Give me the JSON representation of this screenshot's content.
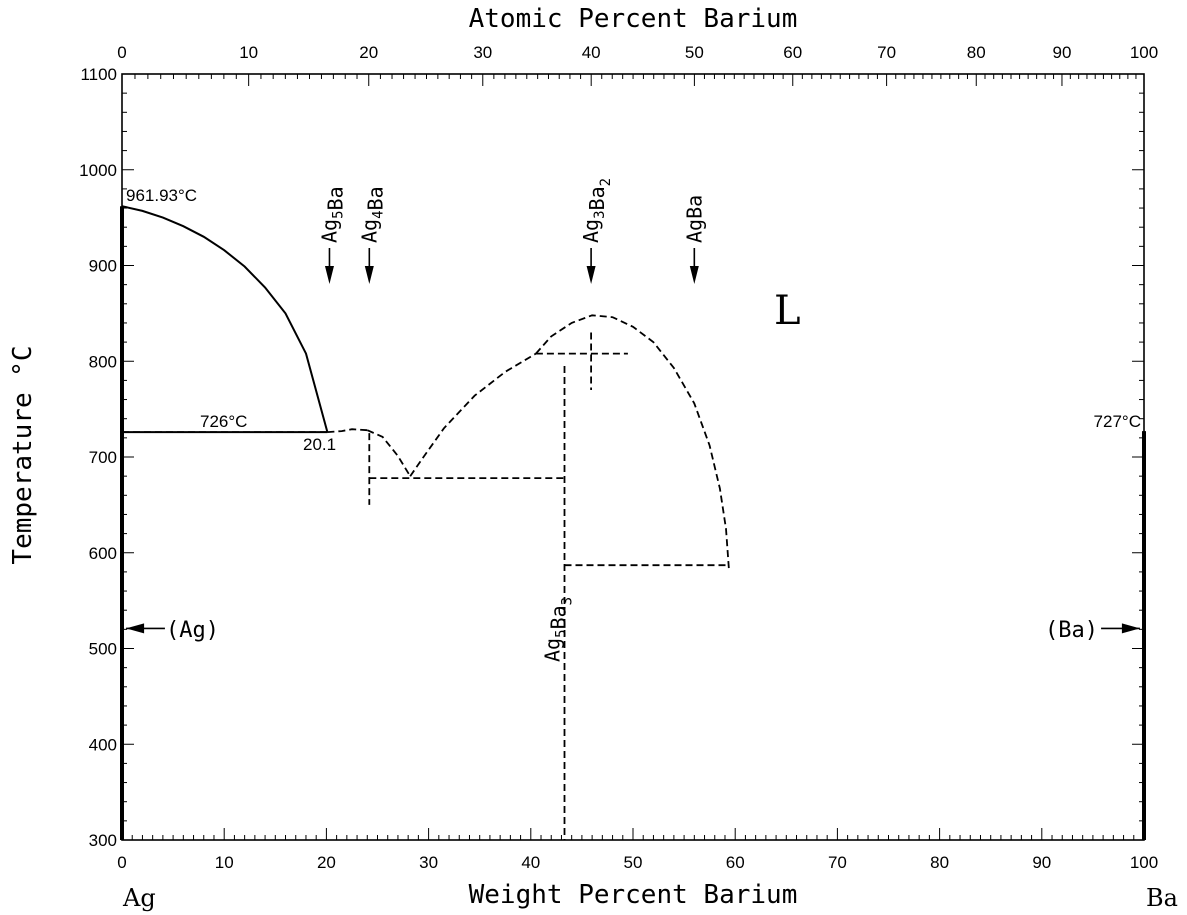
{
  "chart_data": {
    "type": "phase-diagram",
    "title": "",
    "x_bottom_label": "Weight Percent Barium",
    "x_top_label": "Atomic Percent Barium",
    "ylabel": "Temperature °C",
    "xlim": [
      0,
      100
    ],
    "ylim": [
      300,
      1100
    ],
    "bottom_ticks": [
      0,
      10,
      20,
      30,
      40,
      50,
      60,
      70,
      80,
      90,
      100
    ],
    "top_ticks": [
      0,
      10,
      20,
      30,
      40,
      50,
      60,
      70,
      80,
      90,
      100
    ],
    "y_ticks": [
      300,
      400,
      500,
      600,
      700,
      800,
      900,
      1000,
      1100
    ],
    "grid": false,
    "left_element": "Ag",
    "right_element": "Ba",
    "region_label": "L",
    "phase_labels": {
      "ag_solid": "(Ag)",
      "ba_solid": "(Ba)"
    },
    "annotations": {
      "ag_melting": "961.93°C",
      "eutectic_temp": "726°C",
      "eutectic_comp": "20.1",
      "ba_transition": "727°C"
    },
    "compounds": [
      {
        "base": "Ag",
        "sub1": "5",
        "mid": "Ba",
        "sub2": "",
        "wt_pct": 20.3
      },
      {
        "base": "Ag",
        "sub1": "4",
        "mid": "Ba",
        "sub2": "",
        "wt_pct": 24.2
      },
      {
        "base": "Ag",
        "sub1": "3",
        "mid": "Ba",
        "sub2": "2",
        "wt_pct": 45.9
      },
      {
        "base": "Ag",
        "sub1": "",
        "mid": "Ba",
        "sub2": "",
        "wt_pct": 56.0
      }
    ],
    "vertical_compound": {
      "base": "Ag",
      "sub1": "5",
      "mid": "Ba",
      "sub2": "3",
      "wt_pct": 43.3
    },
    "lines": [
      {
        "name": "liquidus-ag",
        "style": "solid",
        "points": [
          [
            0,
            961.93
          ],
          [
            2,
            957
          ],
          [
            4,
            950
          ],
          [
            6,
            941
          ],
          [
            8,
            930
          ],
          [
            10,
            916
          ],
          [
            12,
            899
          ],
          [
            14,
            877
          ],
          [
            16,
            850
          ],
          [
            18,
            808
          ],
          [
            20.1,
            726
          ]
        ]
      },
      {
        "name": "eutectic-726",
        "style": "solid",
        "points": [
          [
            0,
            726
          ],
          [
            20.1,
            726
          ]
        ]
      },
      {
        "name": "eutectic-726-dashed",
        "style": "dashed",
        "points": [
          [
            0,
            726
          ],
          [
            20.3,
            726
          ]
        ]
      },
      {
        "name": "ag5ba-liquidus",
        "style": "dashed",
        "points": [
          [
            20.1,
            726
          ],
          [
            21.5,
            727
          ],
          [
            22.5,
            729
          ],
          [
            24,
            728
          ]
        ]
      },
      {
        "name": "ag4ba-liquidus",
        "style": "dashed",
        "points": [
          [
            24,
            728
          ],
          [
            25.5,
            721
          ],
          [
            27,
            701
          ],
          [
            28.2,
            680
          ]
        ]
      },
      {
        "name": "ag5ba3-liquidus",
        "style": "dashed",
        "points": [
          [
            28.2,
            680
          ],
          [
            29.5,
            700
          ],
          [
            31.5,
            730
          ],
          [
            34.5,
            764
          ],
          [
            37.5,
            789
          ],
          [
            40.5,
            808
          ]
        ]
      },
      {
        "name": "ag3ba2-liquidus",
        "style": "dashed",
        "points": [
          [
            40.5,
            808
          ],
          [
            42,
            826
          ],
          [
            44,
            840
          ],
          [
            46,
            848
          ],
          [
            48,
            846
          ],
          [
            50,
            836
          ],
          [
            52,
            820
          ],
          [
            54,
            793
          ],
          [
            56,
            756
          ],
          [
            57.5,
            712
          ],
          [
            58.5,
            667
          ],
          [
            59.1,
            625
          ],
          [
            59.4,
            580
          ]
        ]
      },
      {
        "name": "ag4ba-line",
        "style": "dashed",
        "points": [
          [
            24.2,
            725
          ],
          [
            24.2,
            650
          ]
        ]
      },
      {
        "name": "eutectic-680",
        "style": "dashed",
        "points": [
          [
            24.2,
            678
          ],
          [
            43.3,
            678
          ]
        ]
      },
      {
        "name": "ag5ba3-line",
        "style": "dashed",
        "points": [
          [
            43.3,
            795
          ],
          [
            43.3,
            300
          ]
        ]
      },
      {
        "name": "peritectic-808",
        "style": "dashed",
        "points": [
          [
            40.5,
            808
          ],
          [
            49.5,
            808
          ]
        ]
      },
      {
        "name": "ag3ba2-line",
        "style": "dashed",
        "points": [
          [
            45.9,
            830
          ],
          [
            45.9,
            770
          ]
        ]
      },
      {
        "name": "eutectic-587",
        "style": "dashed",
        "points": [
          [
            43.3,
            587
          ],
          [
            59.4,
            587
          ]
        ]
      },
      {
        "name": "ag-solid-axis",
        "style": "thick",
        "points": [
          [
            0,
            961.93
          ],
          [
            0,
            300
          ]
        ]
      },
      {
        "name": "ba-solid-axis",
        "style": "thick",
        "points": [
          [
            100,
            727
          ],
          [
            100,
            300
          ]
        ]
      }
    ],
    "arrows": [
      {
        "name": "ag-solid-arrow",
        "from": [
          4.2,
          521
        ],
        "to": [
          0.4,
          521
        ]
      },
      {
        "name": "ba-solid-arrow",
        "from": [
          95.8,
          521
        ],
        "to": [
          99.6,
          521
        ]
      }
    ]
  }
}
